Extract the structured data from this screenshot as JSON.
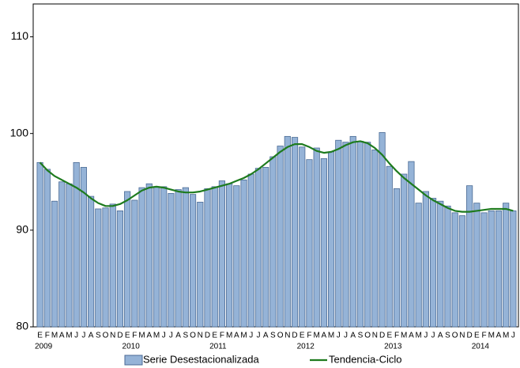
{
  "chart_data": {
    "type": "bar",
    "categories": [
      "E",
      "F",
      "M",
      "A",
      "M",
      "J",
      "J",
      "A",
      "S",
      "O",
      "N",
      "D",
      "E",
      "F",
      "M",
      "A",
      "M",
      "J",
      "J",
      "A",
      "S",
      "O",
      "N",
      "D",
      "E",
      "F",
      "M",
      "A",
      "M",
      "J",
      "J",
      "A",
      "S",
      "O",
      "N",
      "D",
      "E",
      "F",
      "M",
      "A",
      "M",
      "J",
      "J",
      "A",
      "S",
      "O",
      "N",
      "D",
      "E",
      "F",
      "M",
      "A",
      "M",
      "J",
      "J",
      "A",
      "S",
      "O",
      "N",
      "D",
      "E",
      "F",
      "M",
      "A",
      "M",
      "J"
    ],
    "years": [
      "2009",
      "2010",
      "2011",
      "2012",
      "2013",
      "2014"
    ],
    "series": [
      {
        "name": "Serie Desestacionalizada",
        "type": "bar",
        "color": "#95b3d7",
        "edgecolor": "#4a6a94",
        "values": [
          97.0,
          96.3,
          93.0,
          95.0,
          94.8,
          97.0,
          96.5,
          93.5,
          92.2,
          92.3,
          92.7,
          92.0,
          94.0,
          93.1,
          94.4,
          94.8,
          94.5,
          94.5,
          93.8,
          94.2,
          94.4,
          93.7,
          92.9,
          94.3,
          94.5,
          95.1,
          94.8,
          94.6,
          95.2,
          95.8,
          96.4,
          96.5,
          97.6,
          98.7,
          99.7,
          99.6,
          98.6,
          97.3,
          98.5,
          97.4,
          98.1,
          99.3,
          99.1,
          99.7,
          99.2,
          99.1,
          98.3,
          100.1,
          96.6,
          94.3,
          95.8,
          97.1,
          92.8,
          94.0,
          93.3,
          93.0,
          92.5,
          91.8,
          91.5,
          94.6,
          92.8,
          91.8,
          92.0,
          92.0,
          92.8,
          92.0
        ]
      },
      {
        "name": "Tendencia-Ciclo",
        "type": "line",
        "color": "#1e7b1e",
        "values": [
          97.0,
          96.2,
          95.6,
          95.2,
          94.8,
          94.4,
          93.9,
          93.3,
          92.8,
          92.5,
          92.5,
          92.7,
          93.1,
          93.6,
          94.1,
          94.4,
          94.5,
          94.4,
          94.2,
          94.0,
          93.9,
          93.9,
          94.0,
          94.2,
          94.4,
          94.6,
          94.8,
          95.1,
          95.4,
          95.8,
          96.3,
          96.9,
          97.5,
          98.1,
          98.6,
          98.9,
          98.9,
          98.6,
          98.2,
          98.0,
          98.1,
          98.4,
          98.8,
          99.1,
          99.2,
          99.0,
          98.5,
          97.8,
          96.9,
          96.1,
          95.4,
          94.8,
          94.2,
          93.6,
          93.1,
          92.7,
          92.3,
          92.0,
          91.9,
          91.9,
          92.0,
          92.1,
          92.2,
          92.2,
          92.2,
          92.0
        ]
      }
    ],
    "ylim": [
      80,
      113.4
    ],
    "yticks": [
      80,
      90,
      100,
      110
    ],
    "grid": false,
    "legend": "bottom"
  }
}
